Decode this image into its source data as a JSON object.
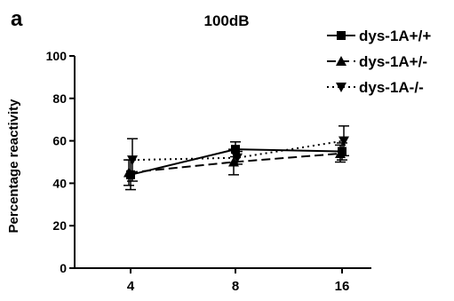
{
  "panel_label": "a",
  "chart_data": {
    "type": "line",
    "title": "100dB",
    "xlabel": "",
    "ylabel": "Percentage reactivity",
    "x": [
      "4",
      "8",
      "16"
    ],
    "ylim": [
      0,
      100
    ],
    "yticks": [
      0,
      20,
      40,
      60,
      80,
      100
    ],
    "legend_position": "top-right",
    "grid": false,
    "series": [
      {
        "name": "dys-1A+/+",
        "values": [
          44,
          56,
          55
        ],
        "errors": [
          7,
          3.5,
          4
        ],
        "marker": "square",
        "line_style": "solid",
        "color": "#000000"
      },
      {
        "name": "dys-1A+/-",
        "values": [
          45,
          50,
          54
        ],
        "errors": [
          6,
          6,
          4
        ],
        "marker": "triangle-up",
        "line_style": "dashed",
        "color": "#000000"
      },
      {
        "name": "dys-1A-/-",
        "values": [
          51,
          52,
          60
        ],
        "errors": [
          10,
          3,
          7
        ],
        "marker": "triangle-down",
        "line_style": "dotted",
        "color": "#000000"
      }
    ]
  }
}
